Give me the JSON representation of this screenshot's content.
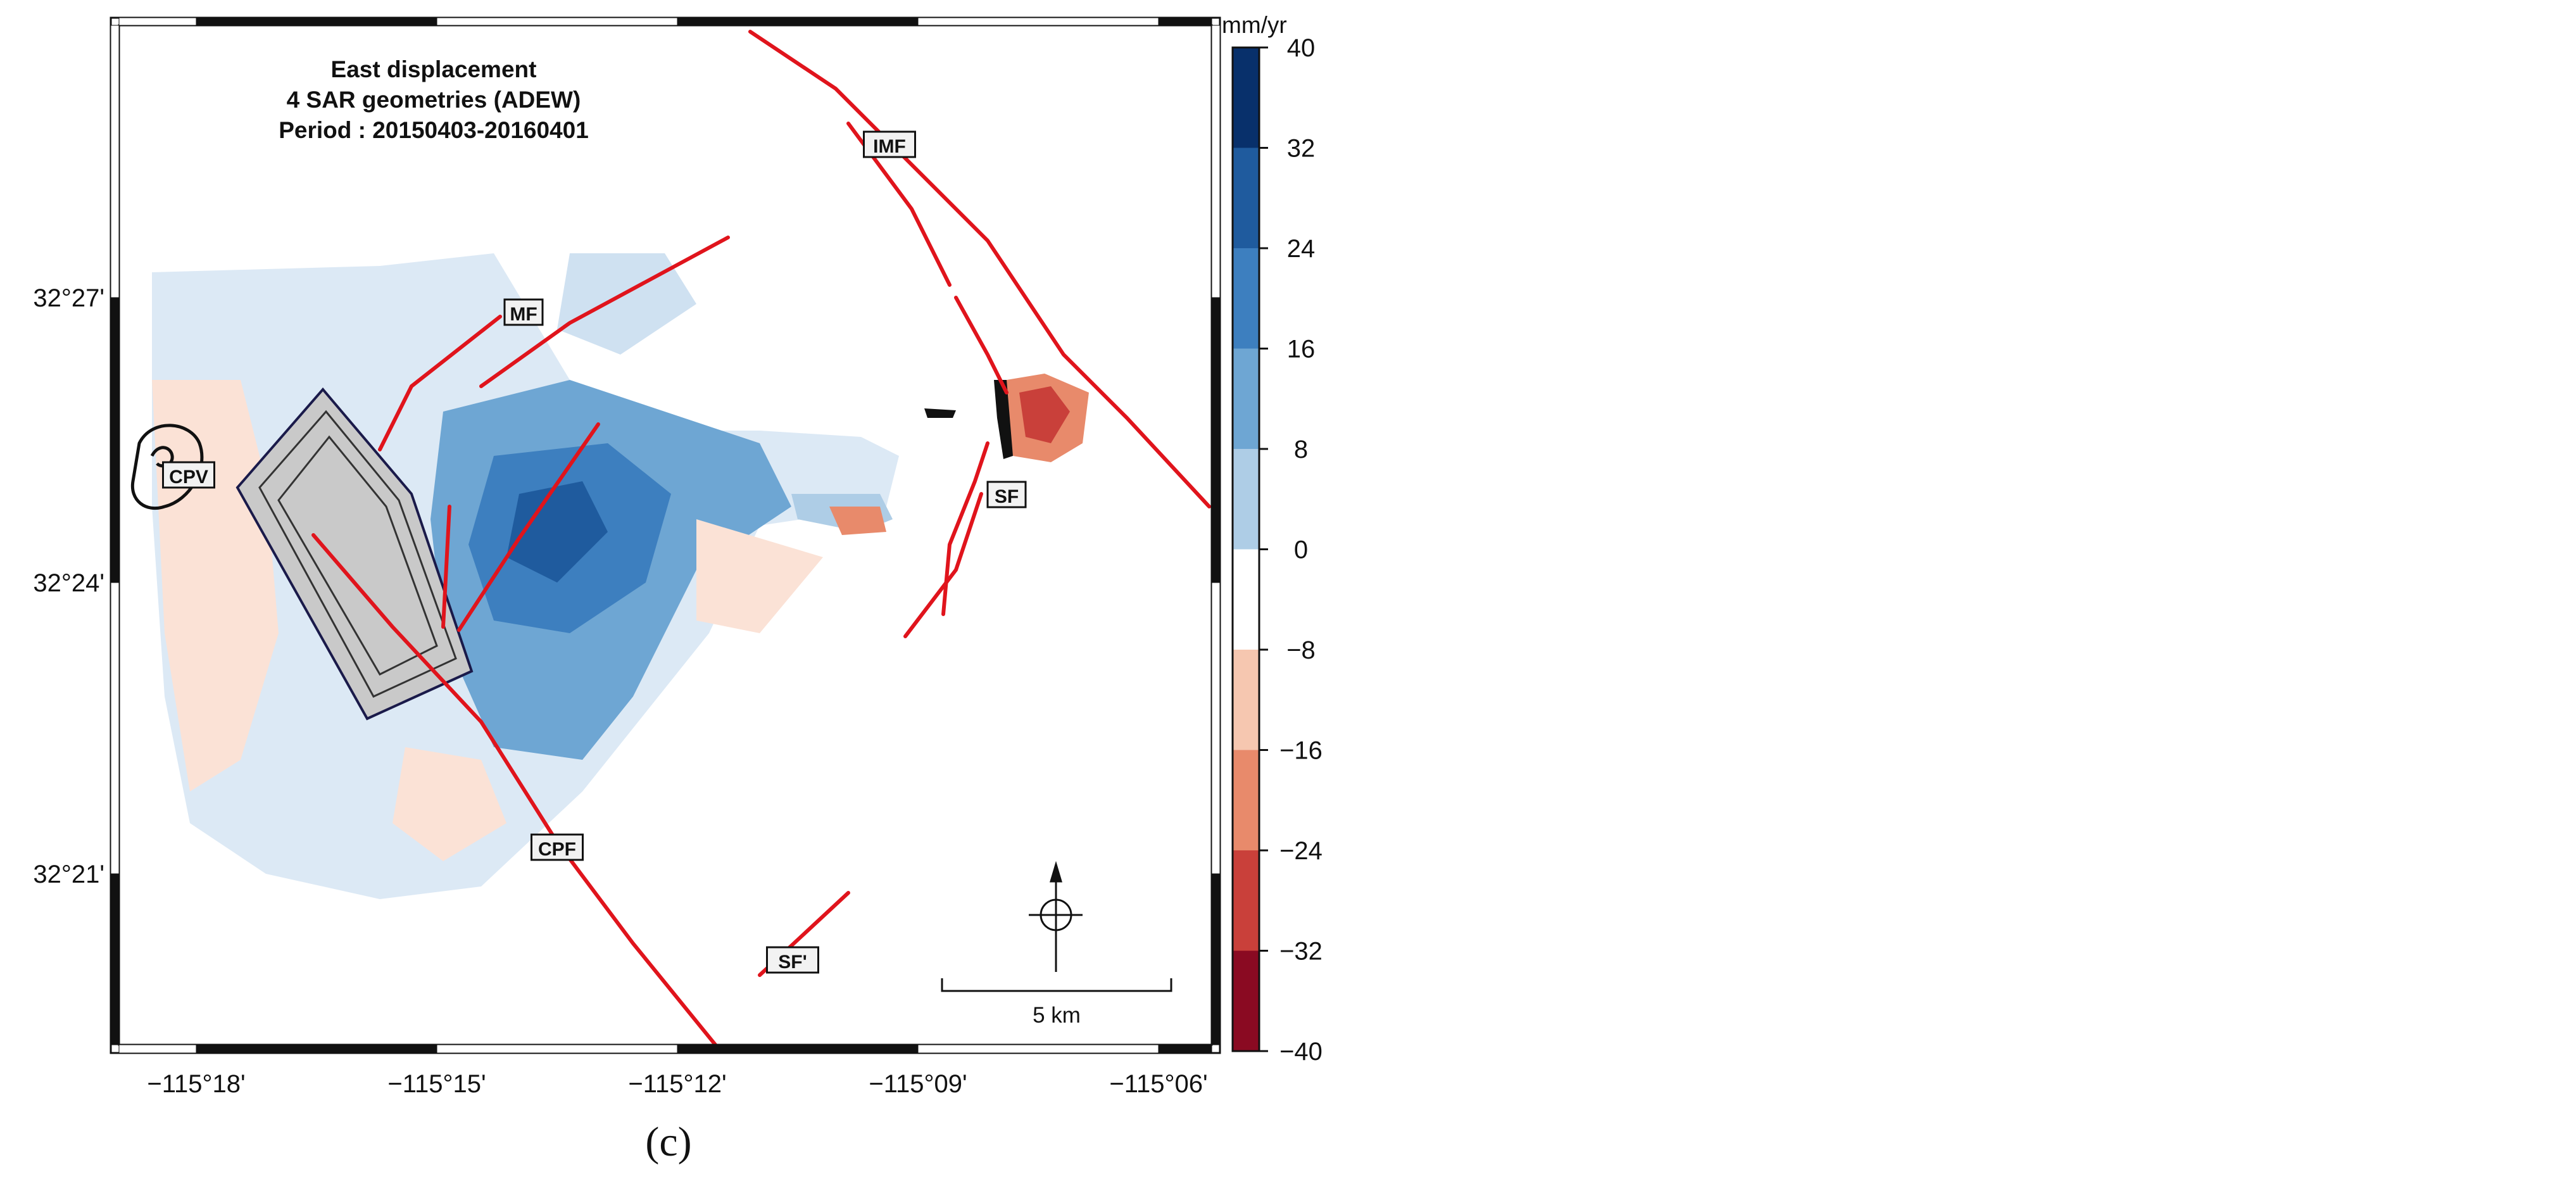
{
  "map": {
    "title_lines": [
      "East displacement",
      "4 SAR geometries (ADEW)",
      "Period : 20150403-20160401"
    ],
    "x_ticks": [
      "−115°18'",
      "−115°15'",
      "−115°12'",
      "−115°09'",
      "−115°06'"
    ],
    "y_ticks": [
      "32°27'",
      "32°24'",
      "32°21'"
    ],
    "fault_labels": [
      "IMF",
      "MF",
      "CPV",
      "SF",
      "CPF",
      "SF'"
    ],
    "scale_bar_label": "5 km",
    "panel_label": "(c)"
  },
  "colorbar": {
    "unit": "mm/yr",
    "ticks": [
      40,
      32,
      24,
      16,
      8,
      0,
      -8,
      -16,
      -24,
      -32,
      -40
    ],
    "tick_labels": [
      "40",
      "32",
      "24",
      "16",
      "8",
      "0",
      "−8",
      "−16",
      "−24",
      "−32",
      "−40"
    ],
    "colors": [
      "#08306b",
      "#1f5b9e",
      "#3d7fbf",
      "#6ea6d3",
      "#aecde6",
      "#ffffff",
      "#f6c7b0",
      "#e88a6b",
      "#c9403a",
      "#a8162a",
      "#67001f"
    ],
    "range": [
      -40,
      40
    ]
  },
  "colors": {
    "fault": "#e0141c",
    "frame": "#000000",
    "plant_fill": "#c9c9c9"
  }
}
